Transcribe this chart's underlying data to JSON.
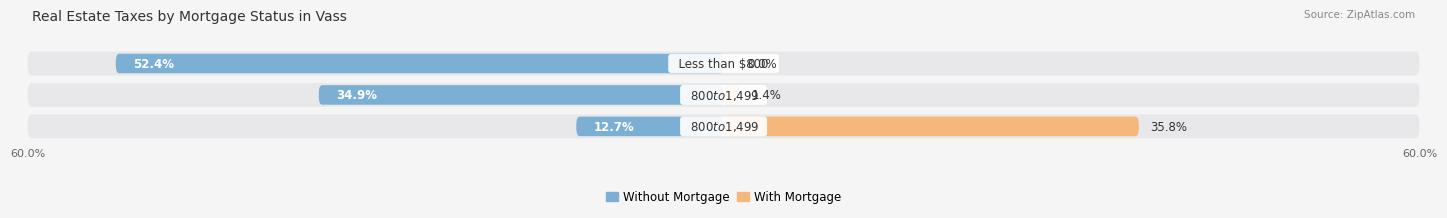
{
  "title": "Real Estate Taxes by Mortgage Status in Vass",
  "source": "Source: ZipAtlas.com",
  "rows": [
    {
      "label": "Less than $800",
      "without_mortgage": 52.4,
      "with_mortgage": 0.0
    },
    {
      "label": "$800 to $1,499",
      "without_mortgage": 34.9,
      "with_mortgage": 1.4
    },
    {
      "label": "$800 to $1,499",
      "without_mortgage": 12.7,
      "with_mortgage": 35.8
    }
  ],
  "xlim": [
    -60,
    60
  ],
  "xtick_values": [
    -60,
    60
  ],
  "color_without": "#7bafd4",
  "color_with": "#f5b87a",
  "bar_height": 0.62,
  "row_bg_color": "#e8e8ea",
  "fig_bg_color": "#f5f5f5",
  "legend_without": "Without Mortgage",
  "legend_with": "With Mortgage",
  "label_fontsize": 8.5,
  "title_fontsize": 10,
  "source_fontsize": 7.5,
  "axis_label_fontsize": 8,
  "value_text_color": "#333333",
  "center_label_bg": "#f5f5f5"
}
